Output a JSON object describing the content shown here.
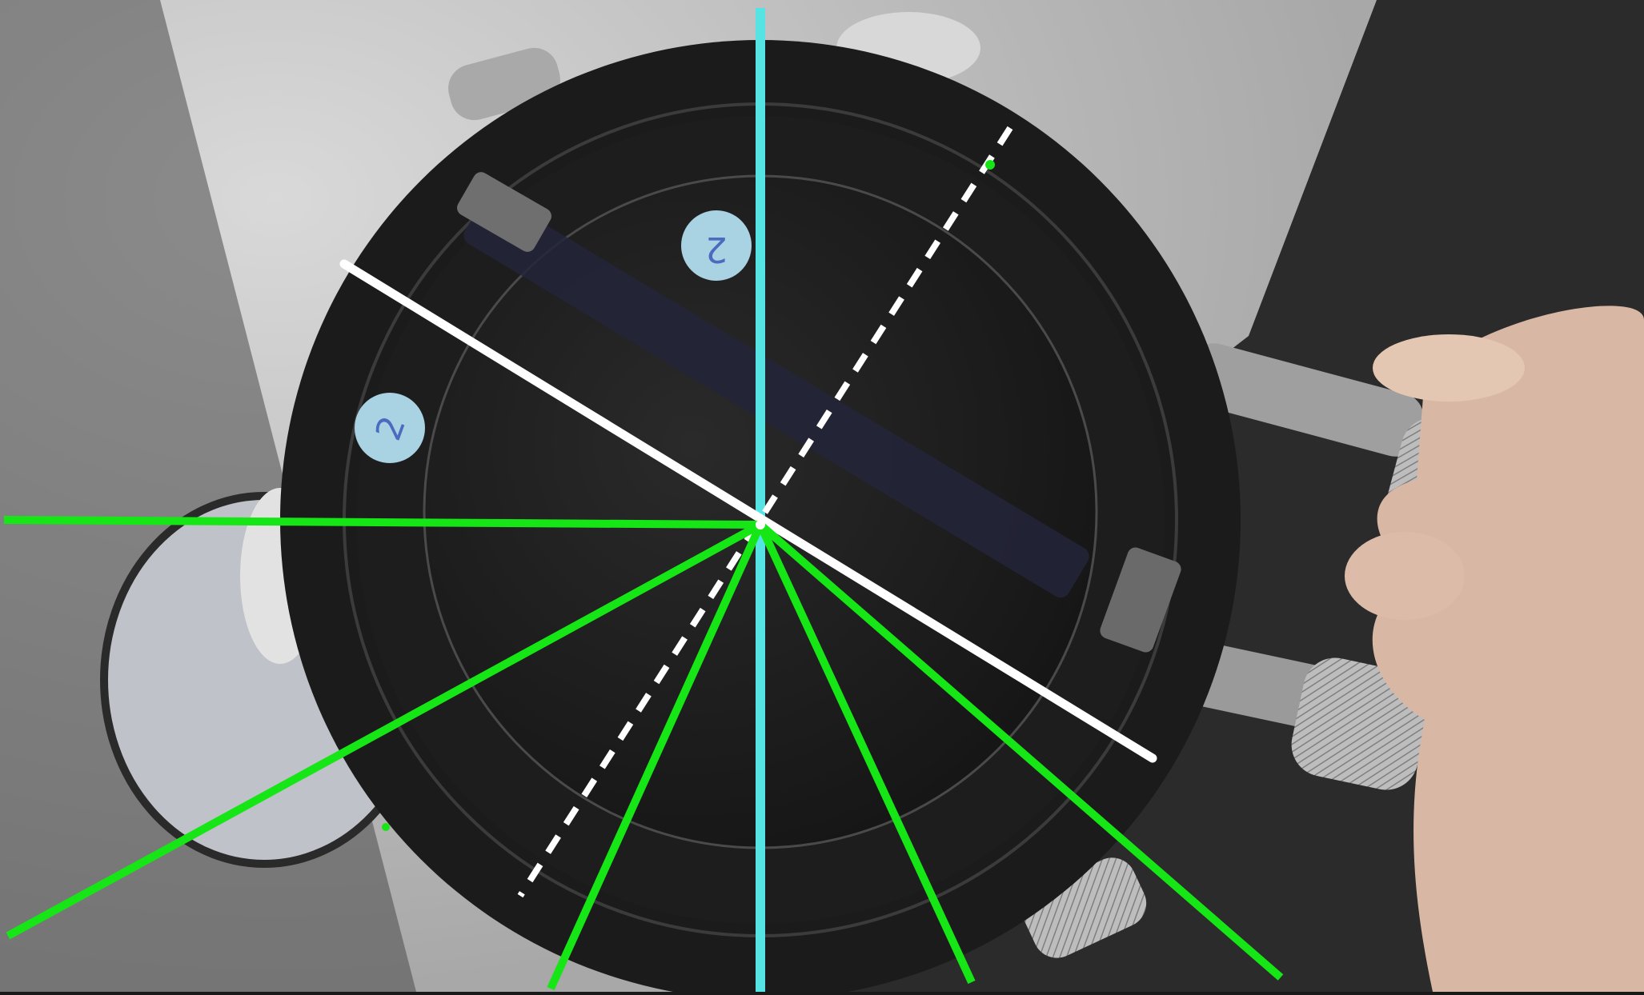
{
  "scene": {
    "labels": {
      "sticker_upper": "2",
      "sticker_lower": "2"
    },
    "colors": {
      "background_left_gray": "#c9c9c9",
      "background_dark": "#2a2a2a",
      "mount_black": "#1b1b1b",
      "ring_outline": "#3b3b3b",
      "sticker_blue": "#a9d2e3",
      "sticker_ink": "#4a6cbf",
      "rod_silver": "#a7a7a7",
      "knurl_silver": "#c2c2c2",
      "hand_skin": "#d8b8a4",
      "line_cyan": "#55e3e3",
      "line_green": "#16e616",
      "line_white": "#ffffff"
    }
  }
}
